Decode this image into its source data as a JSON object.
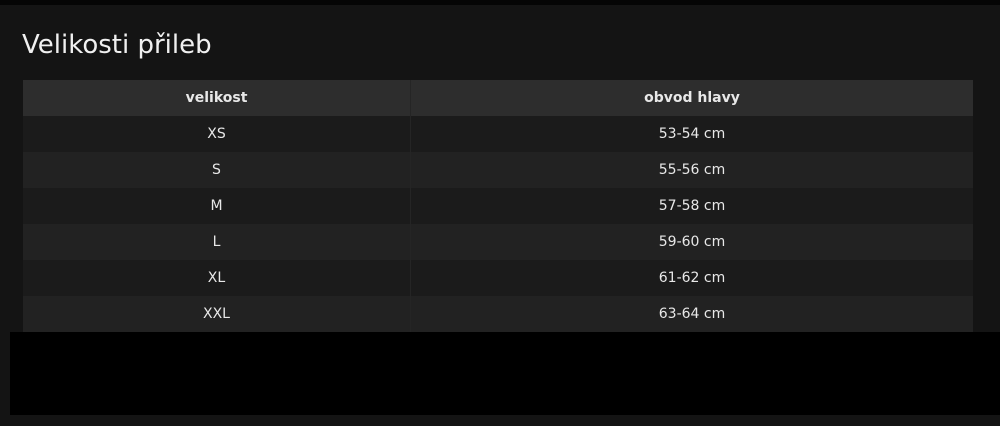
{
  "title": "Velikosti přileb",
  "table": {
    "headers": [
      "velikost",
      "obvod hlavy"
    ],
    "rows": [
      [
        "XS",
        "53-54 cm"
      ],
      [
        "S",
        "55-56 cm"
      ],
      [
        "M",
        "57-58 cm"
      ],
      [
        "L",
        "59-60 cm"
      ],
      [
        "XL",
        "61-62 cm"
      ],
      [
        "XXL",
        "63-64 cm"
      ]
    ]
  }
}
